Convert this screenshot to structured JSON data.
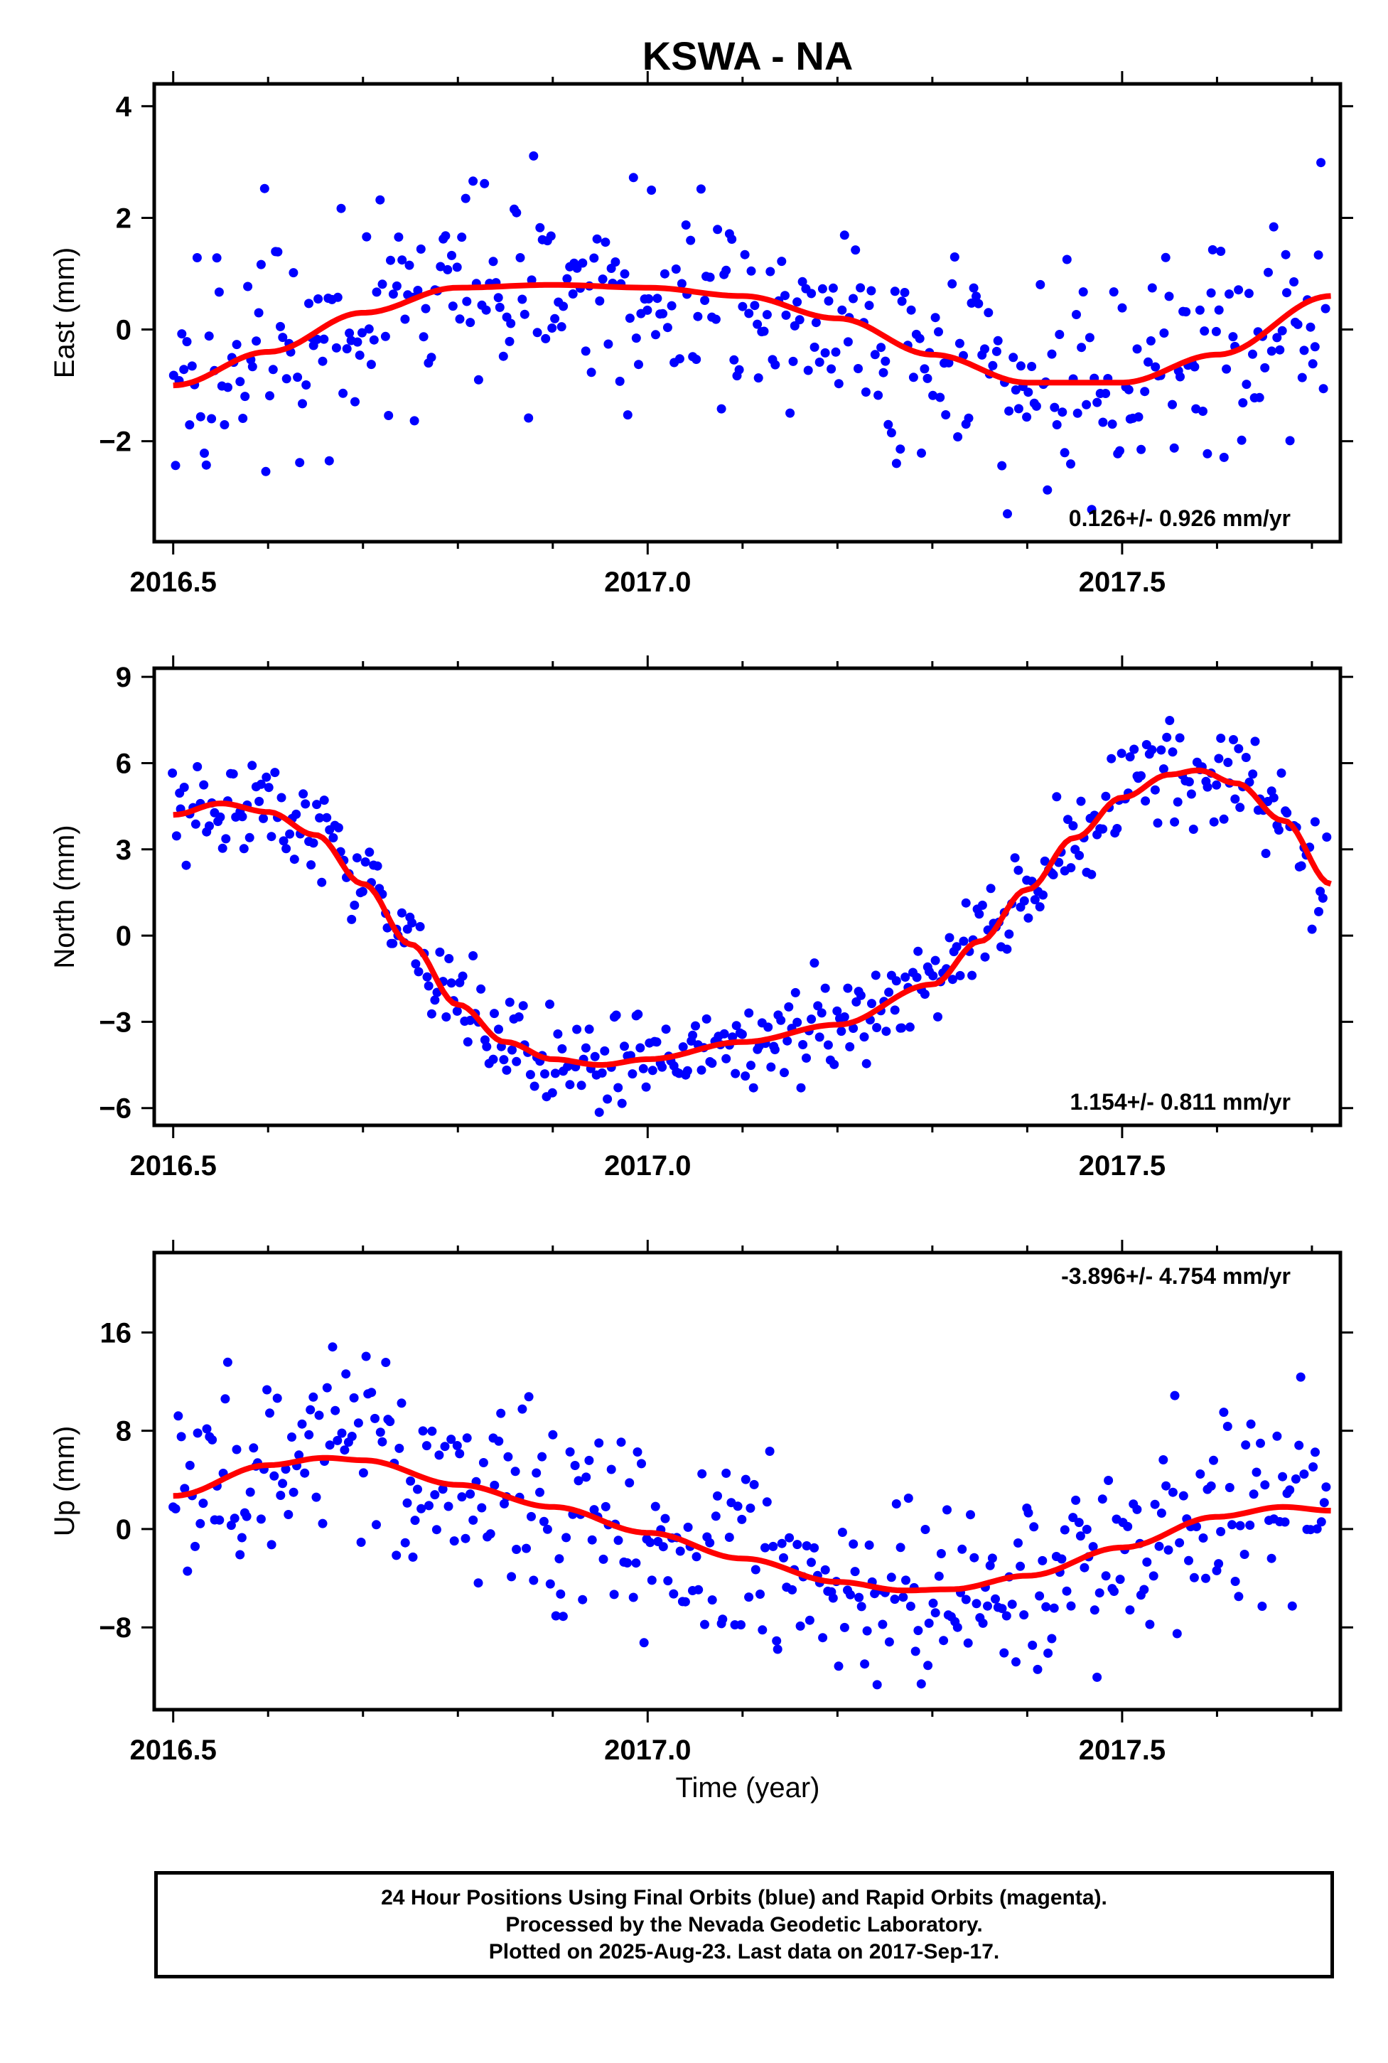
{
  "title": "KSWA - NA",
  "x_axis_label": "Time (year)",
  "footer": {
    "line1": "24 Hour Positions Using Final Orbits (blue) and Rapid Orbits (magenta).",
    "line2": "Processed by the Nevada Geodetic Laboratory.",
    "line3": "Plotted on 2025-Aug-23. Last data on 2017-Sep-17."
  },
  "colors": {
    "points": "#0000ff",
    "fit": "#ff0000"
  },
  "chart_data": [
    {
      "type": "scatter",
      "ylabel": "East (mm)",
      "xlim": [
        2016.48,
        2017.73
      ],
      "ylim": [
        -3.8,
        4.4
      ],
      "xticks": [
        2016.5,
        2017.0,
        2017.5
      ],
      "xtick_labels": [
        "2016.5",
        "2017.0",
        "2017.5"
      ],
      "yticks": [
        -2,
        0,
        2,
        4
      ],
      "ytick_labels": [
        "−2",
        "0",
        "2",
        "4"
      ],
      "rate_label": "0.126+/- 0.926 mm/yr",
      "rate_position": "bottom-right",
      "fit_points": [
        [
          2016.5,
          -1.0
        ],
        [
          2016.6,
          -0.4
        ],
        [
          2016.7,
          0.3
        ],
        [
          2016.8,
          0.75
        ],
        [
          2016.9,
          0.8
        ],
        [
          2017.0,
          0.75
        ],
        [
          2017.1,
          0.6
        ],
        [
          2017.2,
          0.2
        ],
        [
          2017.3,
          -0.45
        ],
        [
          2017.4,
          -0.95
        ],
        [
          2017.5,
          -0.95
        ],
        [
          2017.6,
          -0.45
        ],
        [
          2017.72,
          0.6
        ]
      ],
      "noise_sd": 1.15
    },
    {
      "type": "scatter",
      "ylabel": "North (mm)",
      "xlim": [
        2016.48,
        2017.73
      ],
      "ylim": [
        -6.6,
        9.3
      ],
      "xticks": [
        2016.5,
        2017.0,
        2017.5
      ],
      "xtick_labels": [
        "2016.5",
        "2017.0",
        "2017.5"
      ],
      "yticks": [
        -6,
        -3,
        0,
        3,
        6,
        9
      ],
      "ytick_labels": [
        "−6",
        "−3",
        "0",
        "3",
        "6",
        "9"
      ],
      "rate_label": "1.154+/- 0.811 mm/yr",
      "rate_position": "bottom-right",
      "fit_points": [
        [
          2016.5,
          4.2
        ],
        [
          2016.55,
          4.6
        ],
        [
          2016.6,
          4.3
        ],
        [
          2016.65,
          3.5
        ],
        [
          2016.7,
          1.8
        ],
        [
          2016.75,
          -0.3
        ],
        [
          2016.8,
          -2.4
        ],
        [
          2016.85,
          -3.7
        ],
        [
          2016.9,
          -4.3
        ],
        [
          2016.95,
          -4.5
        ],
        [
          2017.0,
          -4.3
        ],
        [
          2017.1,
          -3.7
        ],
        [
          2017.2,
          -3.1
        ],
        [
          2017.3,
          -1.7
        ],
        [
          2017.35,
          -0.2
        ],
        [
          2017.4,
          1.6
        ],
        [
          2017.45,
          3.4
        ],
        [
          2017.5,
          4.8
        ],
        [
          2017.55,
          5.6
        ],
        [
          2017.58,
          5.75
        ],
        [
          2017.62,
          5.3
        ],
        [
          2017.67,
          4.0
        ],
        [
          2017.72,
          1.8
        ]
      ],
      "noise_sd": 1.0
    },
    {
      "type": "scatter",
      "ylabel": "Up (mm)",
      "xlim": [
        2016.48,
        2017.73
      ],
      "ylim": [
        -14.7,
        22.5
      ],
      "xticks": [
        2016.5,
        2017.0,
        2017.5
      ],
      "xtick_labels": [
        "2016.5",
        "2017.0",
        "2017.5"
      ],
      "yticks": [
        -8,
        0,
        8,
        16
      ],
      "ytick_labels": [
        "−8",
        "0",
        "8",
        "16"
      ],
      "rate_label": "-3.896+/- 4.754 mm/yr",
      "rate_position": "top-right",
      "fit_points": [
        [
          2016.5,
          2.7
        ],
        [
          2016.6,
          5.2
        ],
        [
          2016.66,
          5.8
        ],
        [
          2016.7,
          5.6
        ],
        [
          2016.8,
          3.6
        ],
        [
          2016.9,
          1.8
        ],
        [
          2017.0,
          -0.3
        ],
        [
          2017.1,
          -2.4
        ],
        [
          2017.2,
          -4.3
        ],
        [
          2017.27,
          -5.0
        ],
        [
          2017.32,
          -4.9
        ],
        [
          2017.4,
          -3.8
        ],
        [
          2017.5,
          -1.5
        ],
        [
          2017.6,
          1.0
        ],
        [
          2017.67,
          1.8
        ],
        [
          2017.72,
          1.5
        ]
      ],
      "noise_sd": 4.6
    }
  ]
}
